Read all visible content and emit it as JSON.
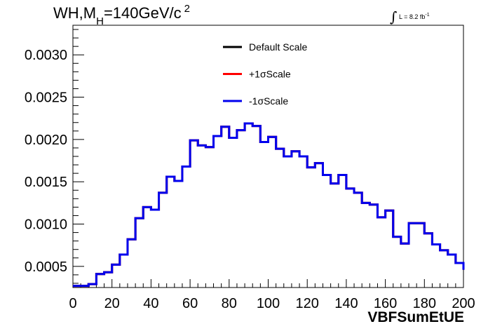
{
  "title": {
    "prefix": "WH,M",
    "subscript": "H",
    "suffix": "=140GeV/c",
    "superscript": "2"
  },
  "lumi": {
    "text": "L = 8.2 fb",
    "exponent": "-1"
  },
  "chart_data": {
    "type": "line",
    "xlabel": "VBFSumEtUE",
    "ylabel": "",
    "xlim": [
      0,
      200
    ],
    "ylim": [
      0.00025,
      0.00335
    ],
    "x_ticks": [
      0,
      20,
      40,
      60,
      80,
      100,
      120,
      140,
      160,
      180,
      200
    ],
    "y_ticks": [
      0.0005,
      0.001,
      0.0015,
      0.002,
      0.0025,
      0.003
    ],
    "y_tick_labels": [
      "0.0005",
      "0.0010",
      "0.0015",
      "0.0020",
      "0.0025",
      "0.0030"
    ],
    "bin_edges": [
      0,
      4,
      8,
      12,
      16,
      20,
      24,
      28,
      32,
      36,
      40,
      44,
      48,
      52,
      56,
      60,
      64,
      68,
      72,
      76,
      80,
      84,
      88,
      92,
      96,
      100,
      104,
      108,
      112,
      116,
      120,
      124,
      128,
      132,
      136,
      140,
      144,
      148,
      152,
      156,
      160,
      164,
      168,
      172,
      176,
      180,
      184,
      188,
      192,
      196,
      200
    ],
    "series": [
      {
        "name": "Default Scale",
        "color": "#000000",
        "values": [
          0.00027,
          0.00027,
          0.00029,
          0.00041,
          0.00043,
          0.00052,
          0.00064,
          0.00082,
          0.00107,
          0.0012,
          0.00117,
          0.00137,
          0.00156,
          0.00151,
          0.00168,
          0.00199,
          0.00193,
          0.00191,
          0.00204,
          0.00215,
          0.00202,
          0.00211,
          0.00219,
          0.00216,
          0.00197,
          0.00203,
          0.00189,
          0.0018,
          0.00186,
          0.0018,
          0.00167,
          0.00172,
          0.00158,
          0.00148,
          0.00158,
          0.00142,
          0.00137,
          0.00125,
          0.00123,
          0.00108,
          0.00116,
          0.00085,
          0.00077,
          0.00101,
          0.00101,
          0.00089,
          0.00076,
          0.00069,
          0.00064,
          0.00054,
          0.00046
        ]
      },
      {
        "name": "+1σScale",
        "color": "#ff0000",
        "values": [
          0.00027,
          0.00027,
          0.00029,
          0.00041,
          0.00043,
          0.00052,
          0.00064,
          0.00082,
          0.00107,
          0.0012,
          0.00117,
          0.00137,
          0.00156,
          0.00151,
          0.00168,
          0.00199,
          0.00193,
          0.00191,
          0.00204,
          0.00215,
          0.00202,
          0.00211,
          0.00219,
          0.00216,
          0.00197,
          0.00203,
          0.00189,
          0.0018,
          0.00186,
          0.0018,
          0.00167,
          0.00172,
          0.00158,
          0.00148,
          0.00158,
          0.00142,
          0.00137,
          0.00125,
          0.00123,
          0.00108,
          0.00116,
          0.00085,
          0.00077,
          0.00101,
          0.00101,
          0.00089,
          0.00076,
          0.00069,
          0.00064,
          0.00054,
          0.00046
        ]
      },
      {
        "name": "-1σScale",
        "color": "#0000ee",
        "values": [
          0.00027,
          0.00027,
          0.00029,
          0.00041,
          0.00043,
          0.00052,
          0.00064,
          0.00082,
          0.00107,
          0.0012,
          0.00117,
          0.00137,
          0.00156,
          0.00151,
          0.00168,
          0.00199,
          0.00193,
          0.00191,
          0.00204,
          0.00215,
          0.00202,
          0.00211,
          0.00219,
          0.00216,
          0.00197,
          0.00203,
          0.00189,
          0.0018,
          0.00186,
          0.0018,
          0.00167,
          0.00172,
          0.00158,
          0.00148,
          0.00158,
          0.00142,
          0.00137,
          0.00125,
          0.00123,
          0.00108,
          0.00116,
          0.00085,
          0.00077,
          0.00101,
          0.00101,
          0.00089,
          0.00076,
          0.00069,
          0.00064,
          0.00054,
          0.00046
        ]
      }
    ],
    "legend": "top-center",
    "grid": false
  }
}
